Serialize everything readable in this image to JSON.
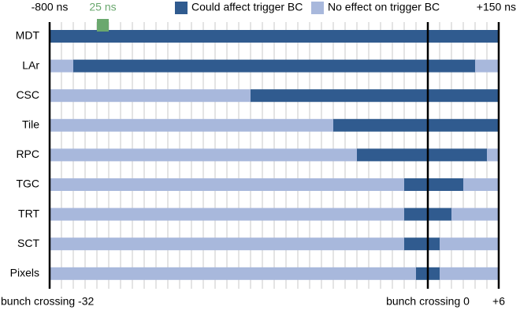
{
  "chart_data": {
    "type": "timeline",
    "categories": [
      "MDT",
      "LAr",
      "CSC",
      "Tile",
      "RPC",
      "TGC",
      "TRT",
      "SCT",
      "Pixels"
    ],
    "series": [
      {
        "name": "Could affect trigger BC",
        "color": "#305b8f",
        "ranges": [
          [
            [
              -32,
              6
            ]
          ],
          [
            [
              -30,
              4
            ]
          ],
          [
            [
              -15,
              6
            ]
          ],
          [
            [
              -8,
              6
            ]
          ],
          [
            [
              -6,
              5
            ]
          ],
          [
            [
              -2,
              3
            ]
          ],
          [
            [
              -2,
              2
            ]
          ],
          [
            [
              -2,
              1
            ]
          ],
          [
            [
              -1,
              1
            ]
          ]
        ]
      },
      {
        "name": "No effect on trigger BC",
        "color": "#a8b8dc",
        "ranges": [
          [],
          [
            [
              -32,
              -30
            ],
            [
              4,
              6
            ]
          ],
          [
            [
              -32,
              -15
            ]
          ],
          [
            [
              -32,
              -8
            ]
          ],
          [
            [
              -32,
              -6
            ],
            [
              5,
              6
            ]
          ],
          [
            [
              -32,
              -2
            ],
            [
              3,
              6
            ]
          ],
          [
            [
              -32,
              -2
            ],
            [
              2,
              6
            ]
          ],
          [
            [
              -32,
              -2
            ],
            [
              1,
              6
            ]
          ],
          [
            [
              -32,
              -1
            ],
            [
              1,
              6
            ]
          ]
        ]
      }
    ],
    "xlim": [
      -32,
      6
    ],
    "top_ticks": [
      {
        "value": -32,
        "label": "-800 ns"
      },
      {
        "value": 6,
        "label": "+150 ns"
      }
    ],
    "xticks": [
      {
        "value": -32,
        "label": "bunch crossing -32"
      },
      {
        "value": 0,
        "label": "bunch crossing 0"
      },
      {
        "value": 6,
        "label": "+6"
      }
    ],
    "annotation": {
      "label": "25 ns",
      "start": -28,
      "end": -27,
      "color": "#6aa86e"
    },
    "grid": true
  }
}
